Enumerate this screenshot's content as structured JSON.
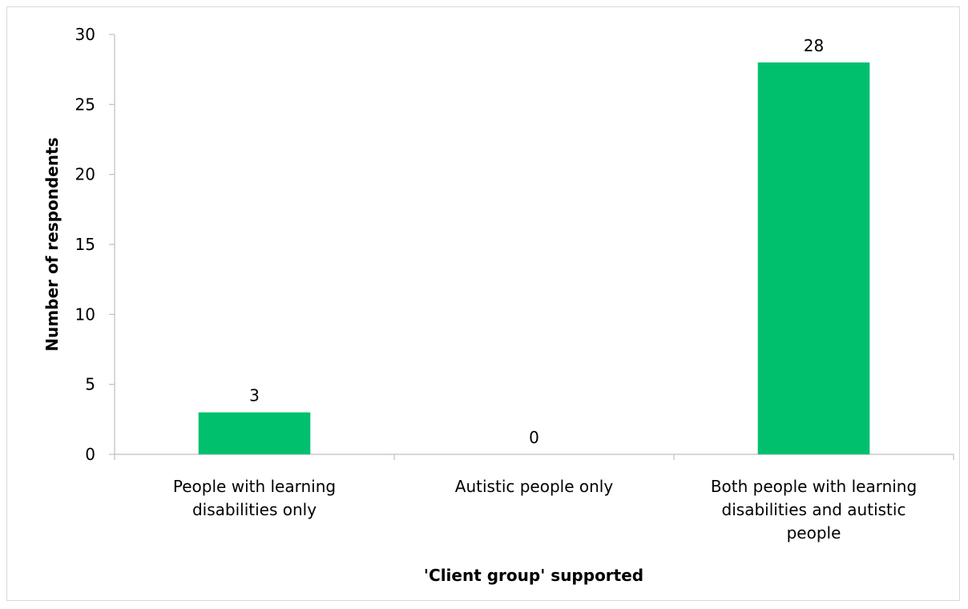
{
  "chart_data": {
    "type": "bar",
    "categories": [
      [
        "People with learning",
        "disabilities only"
      ],
      [
        "Autistic people only"
      ],
      [
        "Both people with learning",
        "disabilities and autistic",
        "people"
      ]
    ],
    "values": [
      3,
      0,
      28
    ],
    "data_labels": [
      "3",
      "0",
      "28"
    ],
    "xlabel": "'Client group' supported",
    "ylabel": "Number of respondents",
    "ylim": [
      0,
      30
    ],
    "yticks": [
      0,
      5,
      10,
      15,
      20,
      25,
      30
    ],
    "grid": false,
    "legend": "none",
    "bar_color": "#00C06E"
  }
}
